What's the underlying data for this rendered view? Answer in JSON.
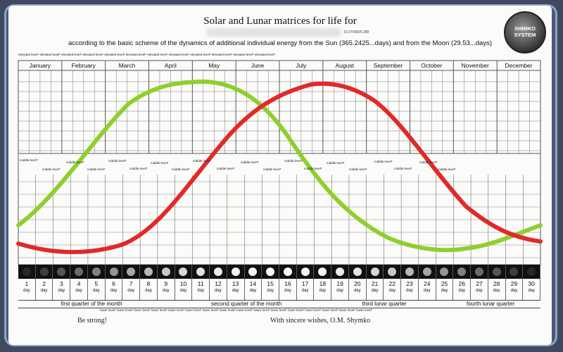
{
  "title": "Solar and Lunar matrices for life for",
  "birthdate_code": "10,37/969/0,288",
  "subtitle": "according to the basic scheme of the dynamics of additional individual energy from the Sun (365.2425...days) and from the Moon (29.53...days)",
  "logo": {
    "line1": "SHIMKO",
    "line2": "SYSTEM"
  },
  "levels": {
    "elevated": "elevated level*",
    "middle": "middle level*",
    "lower": "lower level*"
  },
  "months": [
    "January",
    "February",
    "March",
    "April",
    "May",
    "June",
    "July",
    "August",
    "September",
    "October",
    "November",
    "December"
  ],
  "days": [
    "1",
    "2",
    "3",
    "4",
    "5",
    "6",
    "7",
    "8",
    "9",
    "10",
    "11",
    "12",
    "13",
    "14",
    "15",
    "16",
    "17",
    "18",
    "19",
    "20",
    "21",
    "22",
    "23",
    "24",
    "25",
    "26",
    "27",
    "28",
    "29",
    "30"
  ],
  "day_label": "day",
  "quarters": [
    "first quarter of the month",
    "second quarter of the month",
    "third lunar quarter",
    "fourth lunar quarter"
  ],
  "footer_left": "Be strong!",
  "footer_right": "With sincere wishes, O.M. Shymko",
  "colors": {
    "solar": "#8fcf2d",
    "lunar": "#e02a2a"
  }
}
